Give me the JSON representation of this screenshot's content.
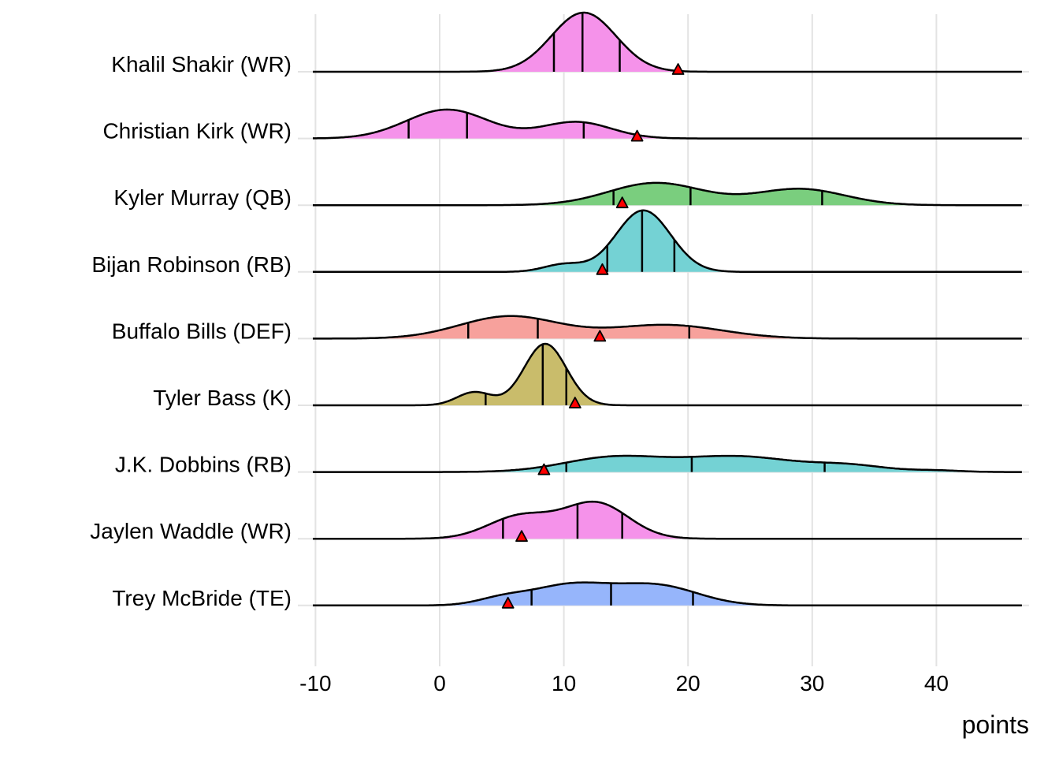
{
  "chart_data": {
    "type": "ridgeline-density",
    "title": "",
    "xlabel": "points",
    "ylabel": "",
    "xlim": [
      -10,
      47
    ],
    "x_ticks": [
      -10,
      0,
      10,
      20,
      30,
      40
    ],
    "x_tick_labels": [
      "-10",
      "0",
      "10",
      "20",
      "30",
      "40"
    ],
    "grid": true,
    "legend": "none",
    "quantile_lines": [
      0.25,
      0.5,
      0.75
    ],
    "marker": {
      "shape": "triangle",
      "color": "#FF0000",
      "meaning": "actual points"
    },
    "series": [
      {
        "name": "Khalil Shakir (WR)",
        "color": "#F564E3",
        "quantiles": [
          9.2,
          11.5,
          14.5
        ],
        "marker_value": 19.2,
        "density": [
          {
            "mu": 11.6,
            "sd": 2.6,
            "w": 1.0
          }
        ]
      },
      {
        "name": "Christian Kirk (WR)",
        "color": "#F564E3",
        "quantiles": [
          -2.5,
          2.2,
          11.6
        ],
        "marker_value": 15.9,
        "density": [
          {
            "mu": 0.6,
            "sd": 3.3,
            "w": 0.62
          },
          {
            "mu": 11.0,
            "sd": 2.8,
            "w": 0.3
          }
        ]
      },
      {
        "name": "Kyler Murray (QB)",
        "color": "#53B400",
        "quantiles": [
          14.0,
          20.2,
          30.8
        ],
        "marker_value": 14.7,
        "density": [
          {
            "mu": 17.4,
            "sd": 3.8,
            "w": 0.55
          },
          {
            "mu": 29.0,
            "sd": 3.6,
            "w": 0.38
          }
        ]
      },
      {
        "name": "Bijan Robinson (RB)",
        "color": "#00B6EB",
        "quantiles": [
          13.5,
          16.3,
          18.9
        ],
        "marker_value": 13.1,
        "density": [
          {
            "mu": 16.4,
            "sd": 2.2,
            "w": 0.9
          },
          {
            "mu": 10.0,
            "sd": 1.6,
            "w": 0.08
          }
        ]
      },
      {
        "name": "Buffalo Bills (DEF)",
        "color": "#F8766D",
        "quantiles": [
          2.3,
          7.9,
          20.1
        ],
        "marker_value": 12.9,
        "density": [
          {
            "mu": 5.6,
            "sd": 4.0,
            "w": 0.58
          },
          {
            "mu": 18.2,
            "sd": 4.5,
            "w": 0.4
          }
        ]
      },
      {
        "name": "Tyler Bass (K)",
        "color": "#A58AFF",
        "quantiles": [
          3.7,
          8.3,
          10.2
        ],
        "marker_value": 10.9,
        "density": [
          {
            "mu": 8.5,
            "sd": 1.7,
            "w": 0.85
          },
          {
            "mu": 2.8,
            "sd": 1.4,
            "w": 0.15
          }
        ]
      },
      {
        "name": "J.K. Dobbins (RB)",
        "color": "#00C0AF",
        "quantiles": [
          10.2,
          20.3,
          31.0
        ],
        "marker_value": 8.4,
        "density": [
          {
            "mu": 14.0,
            "sd": 4.0,
            "w": 0.38
          },
          {
            "mu": 24.0,
            "sd": 4.5,
            "w": 0.45
          },
          {
            "mu": 33.0,
            "sd": 3.0,
            "w": 0.12
          },
          {
            "mu": 40.0,
            "sd": 2.0,
            "w": 0.02
          }
        ]
      },
      {
        "name": "Jaylen Waddle (WR)",
        "color": "#F564E3",
        "quantiles": [
          5.1,
          11.1,
          14.7
        ],
        "marker_value": 6.6,
        "density": [
          {
            "mu": 12.6,
            "sd": 2.6,
            "w": 0.6
          },
          {
            "mu": 6.5,
            "sd": 2.6,
            "w": 0.38
          }
        ]
      },
      {
        "name": "Trey McBride (TE)",
        "color": "#619CFF",
        "quantiles": [
          7.4,
          13.8,
          20.4
        ],
        "marker_value": 5.5,
        "density": [
          {
            "mu": 10.5,
            "sd": 3.2,
            "w": 0.42
          },
          {
            "mu": 17.5,
            "sd": 3.3,
            "w": 0.42
          },
          {
            "mu": 5.0,
            "sd": 2.0,
            "w": 0.08
          }
        ]
      }
    ]
  },
  "fill_colors": {
    "Khalil Shakir (WR)": "#F592EA",
    "Christian Kirk (WR)": "#F592EA",
    "Kyler Murray (QB)": "#7ACE7E",
    "Bijan Robinson (RB)": "#74D2D4",
    "Buffalo Bills (DEF)": "#F7A19C",
    "Tyler Bass (K)": "#C9BC6B",
    "J.K. Dobbins (RB)": "#74D2D4",
    "Jaylen Waddle (WR)": "#F592EA",
    "Trey McBride (TE)": "#96B5FB"
  }
}
